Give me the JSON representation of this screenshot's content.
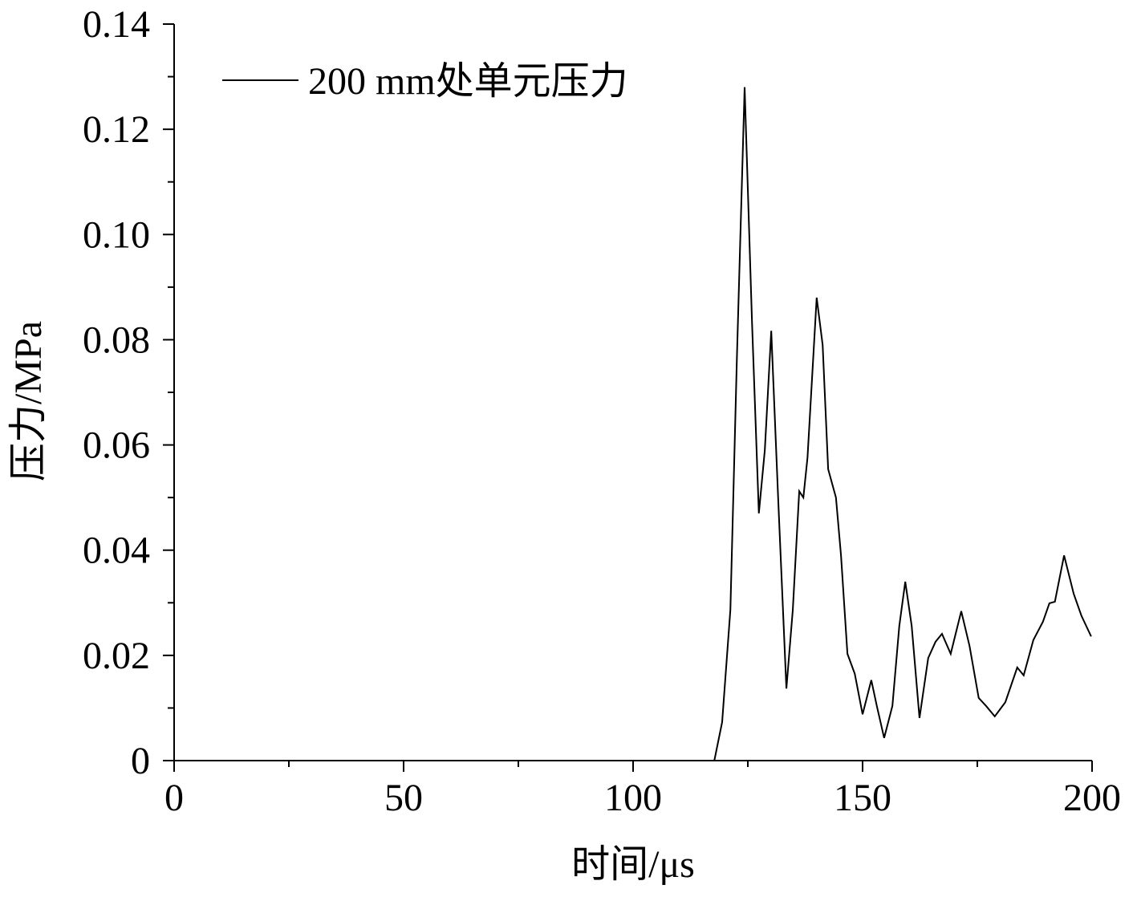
{
  "chart_data": {
    "type": "line",
    "xlabel": "时间/μs",
    "ylabel": "压力/MPa",
    "xlim": [
      0,
      200
    ],
    "ylim": [
      0,
      0.14
    ],
    "xticks": [
      0,
      50,
      100,
      150,
      200
    ],
    "xminorticks": [
      25,
      75,
      125,
      175
    ],
    "yticks": [
      0,
      0.02,
      0.04,
      0.06,
      0.08,
      {
        "value": 0.1,
        "label": "0.10"
      },
      0.12,
      0.14
    ],
    "yminorticks": [
      0.01,
      0.03,
      0.05,
      0.07,
      0.09,
      0.11,
      0.13
    ],
    "legend": "top-left",
    "x": [
      0,
      112,
      117.7,
      119.4,
      121.2,
      122.6,
      124.3,
      125.9,
      127.4,
      128.7,
      130.1,
      131.6,
      133.4,
      134.8,
      136.2,
      137.1,
      138.0,
      140.0,
      141.3,
      142.5,
      144.2,
      145.3,
      146.7,
      148.3,
      150.0,
      151.9,
      153.1,
      154.7,
      156.5,
      158.0,
      159.3,
      160.7,
      162.4,
      164.3,
      165.9,
      167.3,
      169.2,
      171.5,
      173.3,
      175.3,
      176.9,
      178.8,
      181.1,
      183.7,
      185.1,
      187.2,
      189.3,
      190.7,
      191.9,
      193.9,
      196.0,
      197.7,
      199.8
    ],
    "series": [
      {
        "name": "200 mm处单元压力",
        "color": "#000000",
        "values": [
          0,
          0,
          0,
          0.0073,
          0.0287,
          0.076,
          0.128,
          0.0836,
          0.047,
          0.059,
          0.0817,
          0.05,
          0.0137,
          0.0287,
          0.0512,
          0.05,
          0.0576,
          0.088,
          0.079,
          0.0554,
          0.05,
          0.039,
          0.0203,
          0.0165,
          0.0088,
          0.0153,
          0.0104,
          0.0043,
          0.0104,
          0.0256,
          0.034,
          0.0256,
          0.0081,
          0.0195,
          0.0226,
          0.0241,
          0.0203,
          0.0284,
          0.0218,
          0.0119,
          0.0104,
          0.0084,
          0.0111,
          0.0177,
          0.0162,
          0.0229,
          0.0264,
          0.0299,
          0.0302,
          0.039,
          0.0317,
          0.0275,
          0.0236
        ]
      }
    ]
  }
}
